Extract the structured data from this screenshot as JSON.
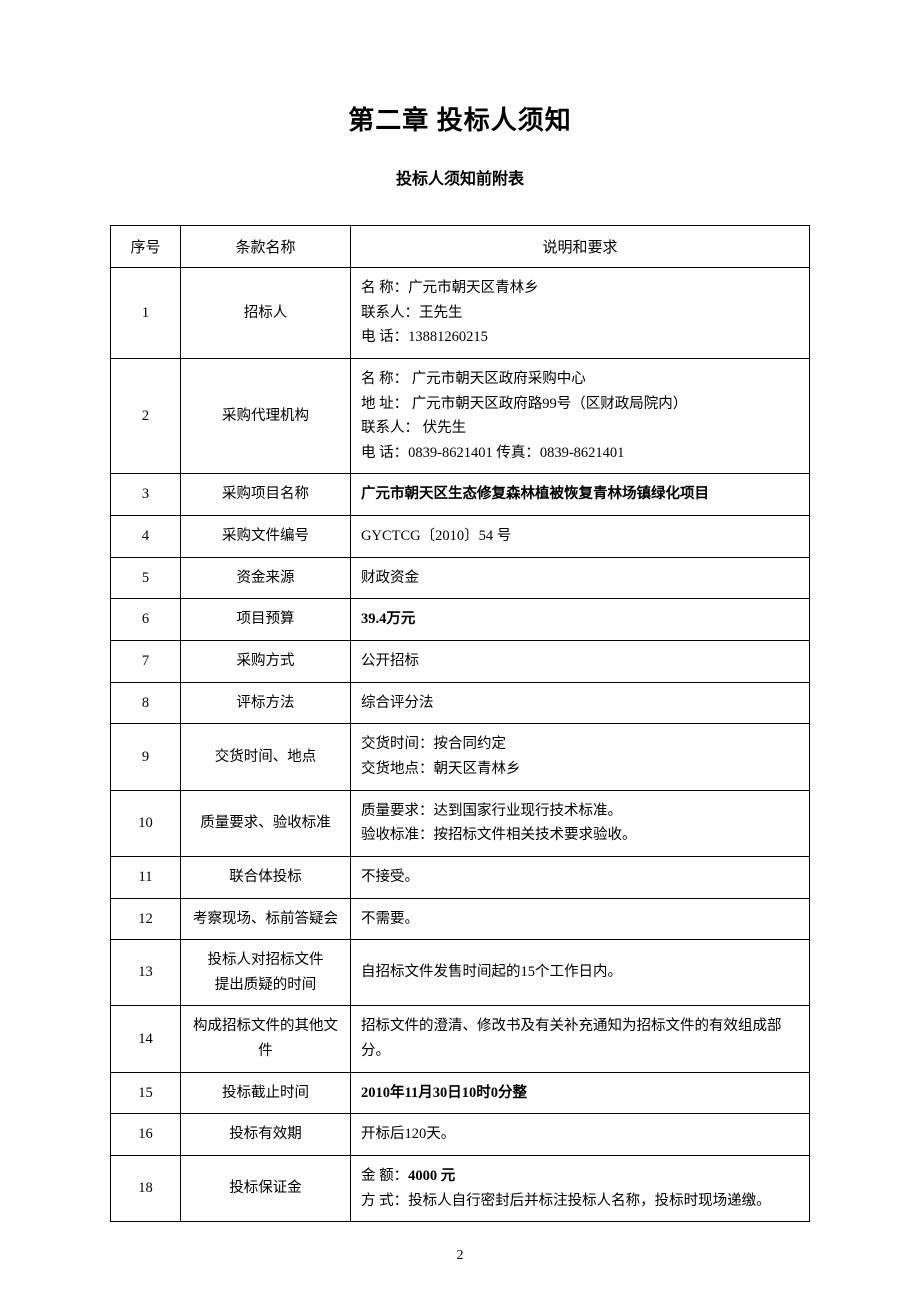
{
  "chapter_title": "第二章   投标人须知",
  "subtitle": "投标人须知前附表",
  "headers": {
    "seq": "序号",
    "name": "条款名称",
    "desc": "说明和要求"
  },
  "rows": [
    {
      "seq": "1",
      "name": "招标人",
      "desc": "名   称：广元市朝天区青林乡\n联系人：王先生\n电   话：13881260215"
    },
    {
      "seq": "2",
      "name": "采购代理机构",
      "desc": "名   称：  广元市朝天区政府采购中心\n地   址：  广元市朝天区政府路99号（区财政局院内）\n联系人：   伏先生\n电   话：0839-8621401      传真：0839-8621401"
    },
    {
      "seq": "3",
      "name": "采购项目名称",
      "desc": "广元市朝天区生态修复森林植被恢复青林场镇绿化项目",
      "desc_bold": true
    },
    {
      "seq": "4",
      "name": "采购文件编号",
      "desc": "GYCTCG〔2010〕54 号"
    },
    {
      "seq": "5",
      "name": "资金来源",
      "desc": "财政资金"
    },
    {
      "seq": "6",
      "name": "项目预算",
      "desc": "39.4万元",
      "desc_bold": true
    },
    {
      "seq": "7",
      "name": "采购方式",
      "desc": "公开招标"
    },
    {
      "seq": "8",
      "name": "评标方法",
      "desc": "综合评分法"
    },
    {
      "seq": "9",
      "name": "交货时间、地点",
      "desc": "交货时间：按合同约定\n交货地点：朝天区青林乡"
    },
    {
      "seq": "10",
      "name": "质量要求、验收标准",
      "desc": "质量要求：达到国家行业现行技术标准。\n验收标准：按招标文件相关技术要求验收。"
    },
    {
      "seq": "11",
      "name": "联合体投标",
      "desc": "不接受。"
    },
    {
      "seq": "12",
      "name": "考察现场、标前答疑会",
      "desc": "不需要。"
    },
    {
      "seq": "13",
      "name": "投标人对招标文件\n提出质疑的时间",
      "desc": "自招标文件发售时间起的15个工作日内。"
    },
    {
      "seq": "14",
      "name": "构成招标文件的其他文件",
      "desc": "招标文件的澄清、修改书及有关补充通知为招标文件的有效组成部分。"
    },
    {
      "seq": "15",
      "name": "投标截止时间",
      "desc": "2010年11月30日10时0分整",
      "desc_bold": true
    },
    {
      "seq": "16",
      "name": "投标有效期",
      "desc": "开标后120天。"
    },
    {
      "seq": "18",
      "name": "投标保证金",
      "desc_html": "金 额：<span class=\"bold\">4000 元</span><br>方 式：投标人自行密封后并标注投标人名称，投标时现场递缴。"
    }
  ],
  "page_number": "2"
}
